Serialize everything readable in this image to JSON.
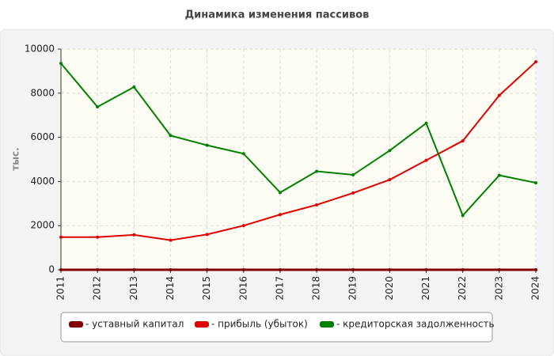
{
  "chart_data": {
    "type": "line",
    "title": "Динамика изменения пассивов",
    "y_label": "тыс.",
    "categories": [
      "2011",
      "2012",
      "2013",
      "2014",
      "2015",
      "2016",
      "2017",
      "2018",
      "2019",
      "2020",
      "2021",
      "2022",
      "2023",
      "2024"
    ],
    "series": [
      {
        "name": "- уставный капитал",
        "color": "#800000",
        "values": [
          0,
          0,
          0,
          0,
          0,
          0,
          0,
          0,
          0,
          0,
          0,
          0,
          0,
          0
        ]
      },
      {
        "name": "- прибыль (убыток)",
        "color": "#e00000",
        "values": [
          1480,
          1480,
          1580,
          1340,
          1600,
          2000,
          2500,
          2940,
          3480,
          4080,
          4960,
          5840,
          7900,
          9420
        ]
      },
      {
        "name": "- кредиторская задолженность",
        "color": "#008000",
        "values": [
          9350,
          7380,
          8280,
          6080,
          5640,
          5260,
          3500,
          4460,
          4300,
          5400,
          6640,
          2460,
          4280,
          3940
        ]
      }
    ],
    "ylim": [
      0,
      10000
    ],
    "yticks": [
      0,
      2000,
      4000,
      6000,
      8000,
      10000
    ],
    "grid": true
  }
}
